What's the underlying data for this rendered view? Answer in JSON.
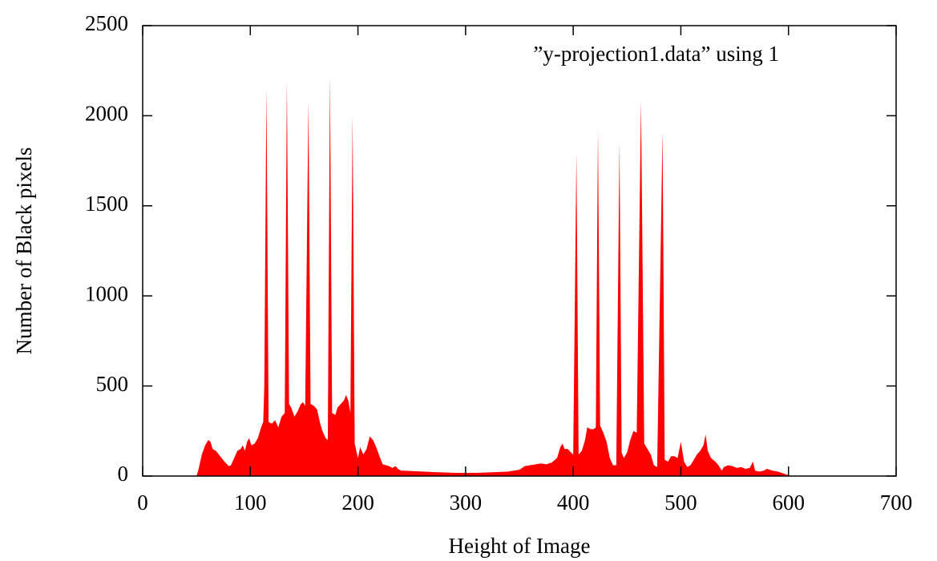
{
  "chart_data": {
    "type": "area",
    "xlabel": "Height of Image",
    "ylabel": "Number of Black pixels",
    "xlim": [
      0,
      700
    ],
    "ylim": [
      0,
      2500
    ],
    "xticks": [
      0,
      100,
      200,
      300,
      400,
      500,
      600,
      700
    ],
    "yticks": [
      0,
      500,
      1000,
      1500,
      2000,
      2500
    ],
    "legend": "top-right",
    "grid": false,
    "series": [
      {
        "name": "”y-projection1.data” using 1",
        "color": "#ff0000",
        "x": [
          50,
          52,
          55,
          58,
          61,
          63,
          65,
          68,
          72,
          76,
          80,
          82,
          85,
          88,
          91,
          93,
          95,
          97,
          99,
          101,
          104,
          107,
          110,
          112,
          113,
          115,
          117,
          120,
          123,
          126,
          129,
          132,
          134,
          136,
          138,
          141,
          144,
          147,
          149,
          151,
          154,
          156,
          159,
          162,
          165,
          167,
          170,
          172,
          174,
          176,
          179,
          181,
          184,
          187,
          189,
          191,
          193,
          195,
          197,
          200,
          202,
          205,
          208,
          211,
          214,
          217,
          220,
          223,
          226,
          229,
          232,
          235,
          237,
          240,
          250,
          260,
          270,
          280,
          290,
          300,
          310,
          320,
          330,
          340,
          350,
          355,
          360,
          365,
          370,
          375,
          380,
          385,
          388,
          390,
          392,
          395,
          398,
          400,
          403,
          405,
          408,
          411,
          413,
          416,
          419,
          421,
          423,
          425,
          428,
          431,
          434,
          437,
          440,
          443,
          445,
          447,
          450,
          453,
          456,
          459,
          463,
          466,
          469,
          472,
          475,
          478,
          483,
          485,
          488,
          491,
          494,
          497,
          500,
          503,
          506,
          509,
          512,
          515,
          518,
          521,
          523,
          525,
          528,
          532,
          535,
          538,
          540,
          544,
          548,
          552,
          556,
          560,
          564,
          567,
          569,
          573,
          577,
          580,
          585,
          590,
          595,
          600,
          602
        ],
        "values": [
          0,
          40,
          120,
          170,
          200,
          190,
          150,
          140,
          110,
          80,
          55,
          60,
          100,
          140,
          150,
          170,
          140,
          190,
          210,
          170,
          180,
          210,
          270,
          300,
          500,
          2150,
          300,
          290,
          310,
          270,
          330,
          350,
          2200,
          400,
          380,
          330,
          360,
          400,
          410,
          390,
          2080,
          400,
          390,
          370,
          290,
          250,
          210,
          200,
          2220,
          350,
          340,
          380,
          400,
          420,
          450,
          420,
          350,
          2000,
          180,
          100,
          160,
          120,
          150,
          220,
          200,
          160,
          110,
          65,
          60,
          55,
          45,
          55,
          40,
          30,
          28,
          25,
          22,
          20,
          18,
          18,
          18,
          20,
          22,
          25,
          35,
          55,
          60,
          65,
          70,
          65,
          75,
          100,
          160,
          180,
          150,
          150,
          130,
          120,
          1790,
          120,
          140,
          200,
          270,
          260,
          260,
          270,
          1920,
          280,
          240,
          190,
          100,
          60,
          60,
          1850,
          130,
          100,
          130,
          200,
          250,
          240,
          2080,
          180,
          150,
          120,
          60,
          50,
          1910,
          90,
          80,
          110,
          110,
          100,
          190,
          80,
          50,
          60,
          90,
          120,
          140,
          170,
          230,
          140,
          100,
          80,
          60,
          30,
          50,
          60,
          55,
          45,
          50,
          40,
          45,
          80,
          30,
          25,
          30,
          40,
          30,
          25,
          15,
          5,
          0
        ]
      }
    ]
  }
}
